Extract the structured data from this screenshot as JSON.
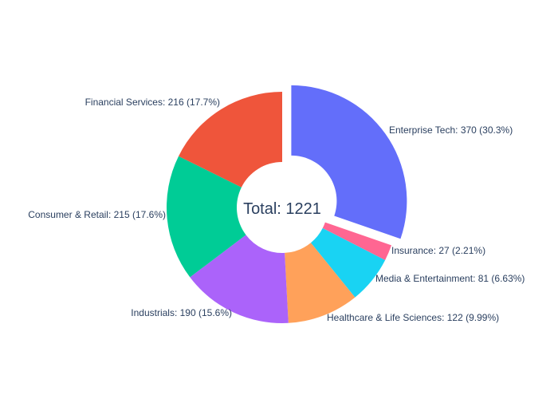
{
  "chart_data": {
    "type": "pie",
    "hole": true,
    "title": "",
    "center_text": "Total: 1221",
    "legend": "none",
    "slices": [
      {
        "label": "Enterprise Tech",
        "value": 370,
        "percent": "30.3%",
        "text": "Enterprise Tech: 370 (30.3%)",
        "color": "#636efa",
        "pulled": true
      },
      {
        "label": "Insurance",
        "value": 27,
        "percent": "2.21%",
        "text": "Insurance: 27 (2.21%)",
        "color": "#ff6692",
        "pulled": false
      },
      {
        "label": "Media & Entertainment",
        "value": 81,
        "percent": "6.63%",
        "text": "Media & Entertainment: 81 (6.63%)",
        "color": "#19d3f3",
        "pulled": false
      },
      {
        "label": "Healthcare & Life Sciences",
        "value": 122,
        "percent": "9.99%",
        "text": "Healthcare & Life Sciences: 122 (9.99%)",
        "color": "#ffa15a",
        "pulled": false
      },
      {
        "label": "Industrials",
        "value": 190,
        "percent": "15.6%",
        "text": "Industrials: 190 (15.6%)",
        "color": "#ab63fa",
        "pulled": false
      },
      {
        "label": "Consumer & Retail",
        "value": 215,
        "percent": "17.6%",
        "text": "Consumer & Retail: 215 (17.6%)",
        "color": "#00cc96",
        "pulled": false
      },
      {
        "label": "Financial Services",
        "value": 216,
        "percent": "17.7%",
        "text": "Financial Services: 216 (17.7%)",
        "color": "#ef553b",
        "pulled": false
      }
    ]
  }
}
